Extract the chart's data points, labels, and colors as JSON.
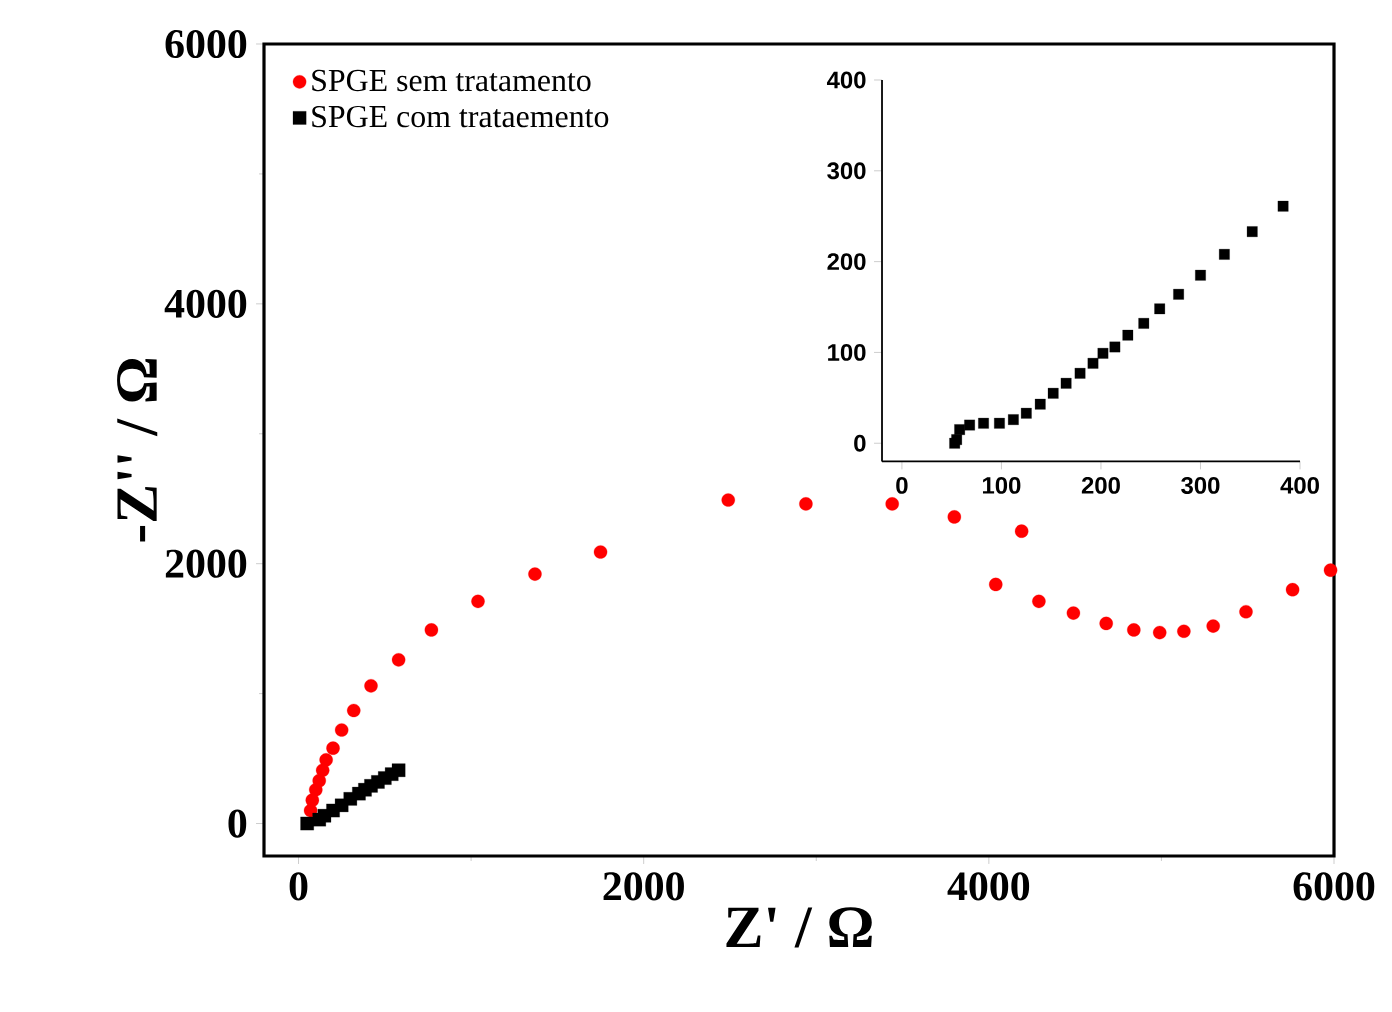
{
  "chart_data": [
    {
      "type": "scatter",
      "xlabel": "Z' / Ω",
      "ylabel": "-Z'' / Ω",
      "xlim": [
        -200,
        6000
      ],
      "ylim": [
        -250,
        6000
      ],
      "xticks": [
        0,
        2000,
        4000,
        6000
      ],
      "yticks": [
        0,
        2000,
        4000,
        6000
      ],
      "legend": "top left",
      "grid": false,
      "series": [
        {
          "name": "SPGE sem tratamento",
          "color": "#ff0000",
          "marker": "circle",
          "x": [
            70,
            80,
            100,
            120,
            140,
            160,
            200,
            250,
            320,
            420,
            580,
            770,
            1040,
            1370,
            1750,
            2490,
            2940,
            3440,
            3800,
            4190,
            4040,
            4290,
            4490,
            4680,
            4840,
            4990,
            5130,
            5300,
            5490,
            5760,
            5980
          ],
          "values": [
            100,
            180,
            260,
            330,
            410,
            490,
            580,
            720,
            870,
            1060,
            1260,
            1490,
            1710,
            1920,
            2090,
            2490,
            2460,
            2460,
            2360,
            2250,
            1840,
            1710,
            1620,
            1540,
            1490,
            1470,
            1480,
            1520,
            1630,
            1800,
            1950
          ]
        },
        {
          "name": "SPGE com trataemento",
          "color": "#000000",
          "marker": "square",
          "x": [
            50,
            120,
            150,
            200,
            250,
            300,
            350,
            385,
            420,
            460,
            500,
            540,
            580
          ],
          "values": [
            0,
            30,
            60,
            100,
            140,
            190,
            230,
            260,
            290,
            320,
            350,
            380,
            410
          ]
        }
      ]
    },
    {
      "type": "scatter",
      "xlim": [
        -20,
        400
      ],
      "ylim": [
        -20,
        400
      ],
      "xticks": [
        0,
        100,
        200,
        300,
        400
      ],
      "yticks": [
        0,
        100,
        200,
        300,
        400
      ],
      "grid": false,
      "series": [
        {
          "color": "#000000",
          "marker": "square",
          "x": [
            53,
            55,
            58,
            68,
            82,
            98,
            112,
            125,
            139,
            152,
            165,
            179,
            192,
            202,
            214,
            227,
            243,
            259,
            278,
            300,
            324,
            352,
            383
          ],
          "values": [
            0,
            4,
            15,
            20,
            22,
            22,
            26,
            33,
            43,
            55,
            66,
            77,
            88,
            99,
            106,
            119,
            132,
            148,
            164,
            185,
            208,
            233,
            261
          ]
        }
      ]
    }
  ]
}
